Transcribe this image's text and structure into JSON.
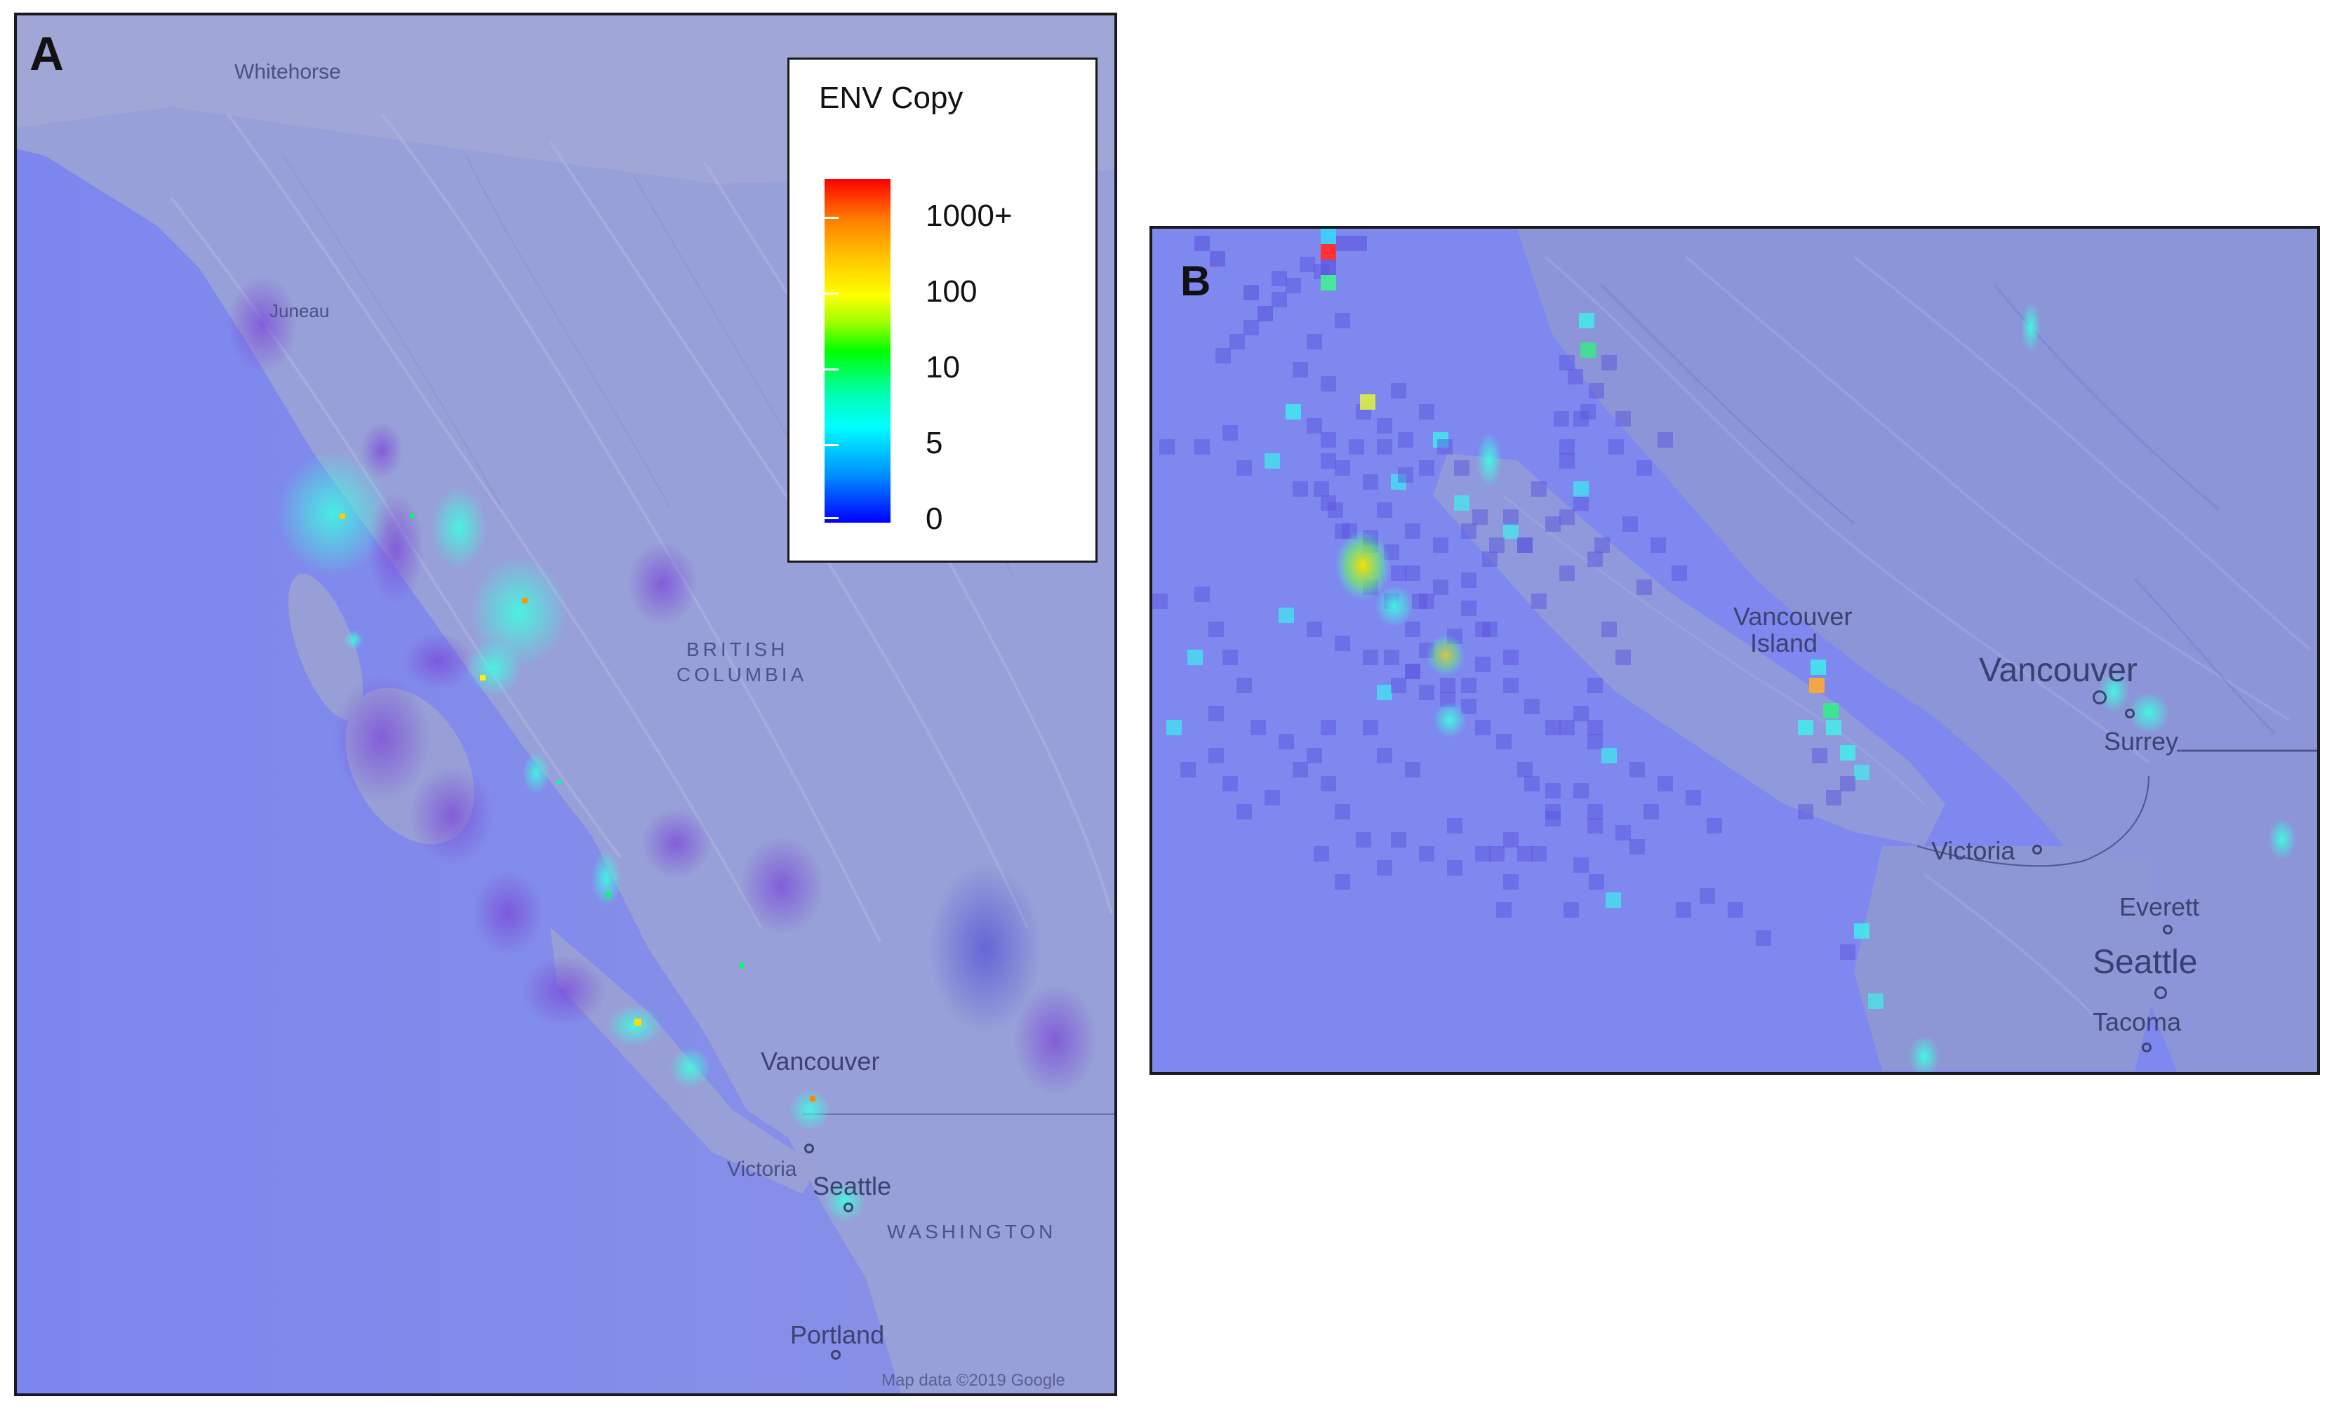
{
  "panels": {
    "a": {
      "letter": "A",
      "labels": {
        "whitehorse": "Whitehorse",
        "juneau": "Juneau",
        "british": "BRITISH",
        "columbia": "COLUMBIA",
        "vancouver": "Vancouver",
        "victoria": "Victoria",
        "seattle": "Seattle",
        "washington": "WASHINGTON",
        "portland": "Portland",
        "copyright": "Map data ©2019 Google"
      }
    },
    "b": {
      "letter": "B",
      "labels": {
        "vancouver_island_1": "Vancouver",
        "vancouver_island_2": "Island",
        "vancouver": "Vancouver",
        "surrey": "Surrey",
        "victoria": "Victoria",
        "everett": "Everett",
        "seattle": "Seattle",
        "tacoma": "Tacoma"
      }
    }
  },
  "legend": {
    "title": "ENV Copy",
    "ticks": [
      "1000+",
      "100",
      "10",
      "5",
      "0"
    ],
    "colors": [
      "#ff0000",
      "#ff7f00",
      "#ffff00",
      "#00ff00",
      "#00ffff",
      "#0000ff"
    ]
  },
  "colors": {
    "map_background": "#8189ec",
    "ocean": "#7f88ee",
    "land_relief": "#9aa3d8",
    "low_density": "#8d6fe0",
    "border": "#1a1a1a"
  }
}
